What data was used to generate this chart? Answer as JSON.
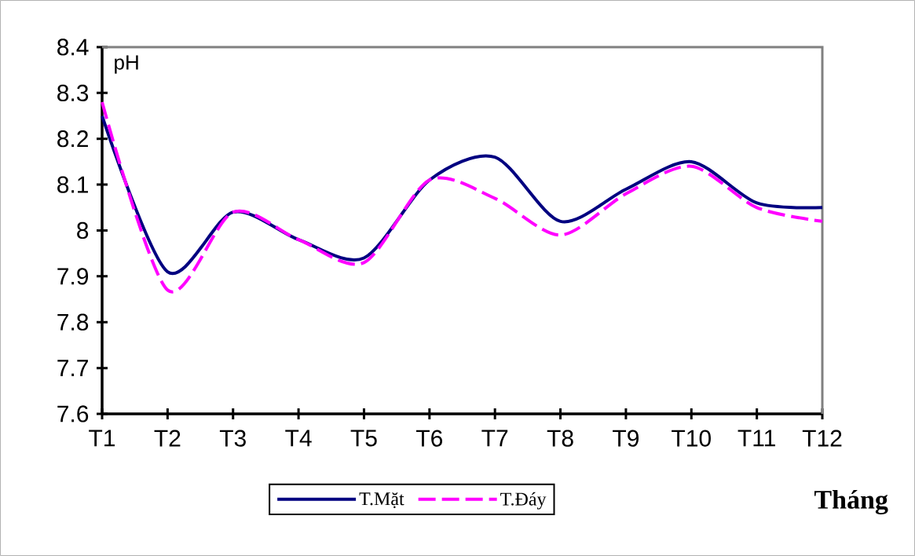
{
  "chart_data": {
    "type": "line",
    "xlabel": "Tháng",
    "ylabel": "pH",
    "categories": [
      "T1",
      "T2",
      "T3",
      "T4",
      "T5",
      "T6",
      "T7",
      "T8",
      "T9",
      "T10",
      "T11",
      "T12"
    ],
    "series": [
      {
        "name": "T.Mặt",
        "color": "#000080",
        "line_style": "solid",
        "values": [
          8.25,
          7.91,
          8.04,
          7.98,
          7.94,
          8.11,
          8.16,
          8.02,
          8.09,
          8.15,
          8.06,
          8.05
        ]
      },
      {
        "name": "T.Đáy",
        "color": "#ff00ff",
        "line_style": "dashed",
        "values": [
          8.28,
          7.87,
          8.04,
          7.98,
          7.93,
          8.11,
          8.07,
          7.99,
          8.08,
          8.14,
          8.05,
          8.02
        ]
      }
    ],
    "ylim": [
      7.6,
      8.4
    ],
    "yticks": [
      7.6,
      7.7,
      7.8,
      7.9,
      8,
      8.1,
      8.2,
      8.3,
      8.4
    ],
    "legend": "bottom",
    "marker": "none"
  }
}
